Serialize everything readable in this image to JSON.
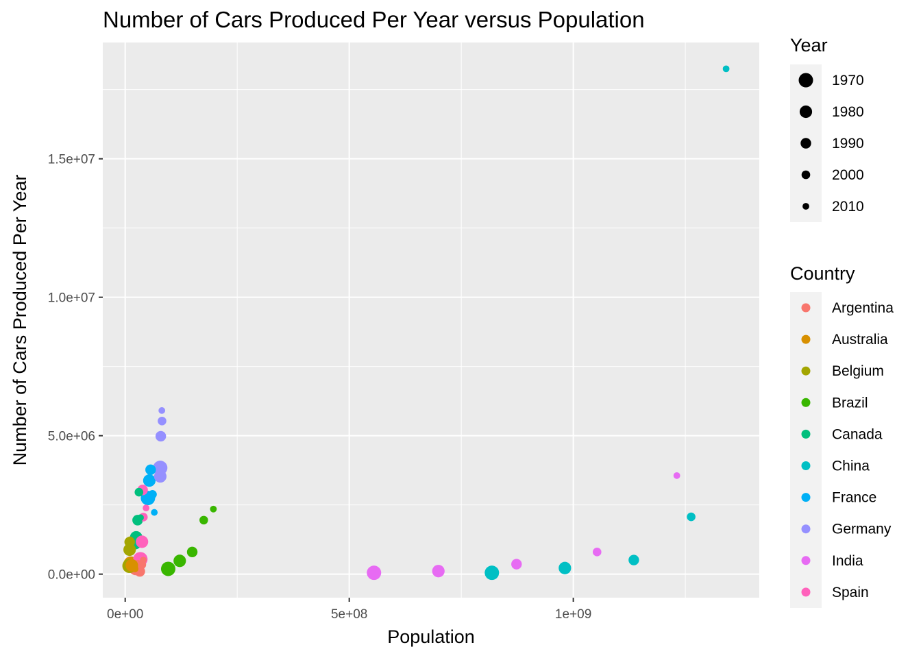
{
  "chart_data": {
    "type": "scatter",
    "title": "Number of Cars Produced Per Year versus Population",
    "xlabel": "Population",
    "ylabel": "Number of Cars Produced Per Year",
    "xlim": [
      -50000000,
      1415000000
    ],
    "ylim": [
      -850000,
      19200000
    ],
    "x_ticks": [
      {
        "value": 0,
        "label": "0e+00"
      },
      {
        "value": 500000000,
        "label": "5e+08"
      },
      {
        "value": 1000000000,
        "label": "1e+09"
      }
    ],
    "y_ticks": [
      {
        "value": 0,
        "label": "0.0e+00"
      },
      {
        "value": 5000000,
        "label": "5.0e+06"
      },
      {
        "value": 10000000,
        "label": "1.0e+07"
      },
      {
        "value": 15000000,
        "label": "1.5e+07"
      }
    ],
    "grid": true,
    "legend_position": "right",
    "size_legend": {
      "title": "Year",
      "entries": [
        {
          "label": "1970",
          "year": 1970
        },
        {
          "label": "1980",
          "year": 1980
        },
        {
          "label": "1990",
          "year": 1990
        },
        {
          "label": "2000",
          "year": 2000
        },
        {
          "label": "2010",
          "year": 2010
        }
      ]
    },
    "color_legend": {
      "title": "Country",
      "entries": [
        {
          "label": "Argentina",
          "color": "#F8766D"
        },
        {
          "label": "Australia",
          "color": "#D89000"
        },
        {
          "label": "Belgium",
          "color": "#A3A500"
        },
        {
          "label": "Brazil",
          "color": "#39B600"
        },
        {
          "label": "Canada",
          "color": "#00BF7D"
        },
        {
          "label": "China",
          "color": "#00BFC4"
        },
        {
          "label": "France",
          "color": "#00B0F6"
        },
        {
          "label": "Germany",
          "color": "#9590FF"
        },
        {
          "label": "India",
          "color": "#E76BF3"
        },
        {
          "label": "Spain",
          "color": "#FF62BC"
        }
      ]
    },
    "series": [
      {
        "name": "Argentina",
        "points": [
          {
            "x": 23960000,
            "y": 220000,
            "year": 1970
          },
          {
            "x": 28090000,
            "y": 282000,
            "year": 1980
          },
          {
            "x": 32620000,
            "y": 100000,
            "year": 1990
          },
          {
            "x": 37060000,
            "y": 340000,
            "year": 2000
          },
          {
            "x": 40370000,
            "y": 508000,
            "year": 2010
          }
        ]
      },
      {
        "name": "Australia",
        "points": [
          {
            "x": 12510000,
            "y": 380000,
            "year": 1970
          },
          {
            "x": 14690000,
            "y": 320000,
            "year": 1980
          },
          {
            "x": 17070000,
            "y": 280000,
            "year": 1990
          },
          {
            "x": 19150000,
            "y": 320000,
            "year": 2000
          },
          {
            "x": 22030000,
            "y": 190000,
            "year": 2010
          }
        ]
      },
      {
        "name": "Belgium",
        "points": [
          {
            "x": 9660000,
            "y": 300000,
            "year": 1970
          },
          {
            "x": 9860000,
            "y": 882000,
            "year": 1980
          },
          {
            "x": 9970000,
            "y": 1160000,
            "year": 1990
          },
          {
            "x": 10250000,
            "y": 912000,
            "year": 2000
          },
          {
            "x": 10900000,
            "y": 1240000,
            "year": 2010
          }
        ]
      },
      {
        "name": "Brazil",
        "points": [
          {
            "x": 95990000,
            "y": 190000,
            "year": 1970
          },
          {
            "x": 121700000,
            "y": 480000,
            "year": 1980
          },
          {
            "x": 149600000,
            "y": 800000,
            "year": 1990
          },
          {
            "x": 175300000,
            "y": 1950000,
            "year": 2000
          },
          {
            "x": 196800000,
            "y": 2350000,
            "year": 2010
          }
        ]
      },
      {
        "name": "Canada",
        "points": [
          {
            "x": 21300000,
            "y": 1150000,
            "year": 1970
          },
          {
            "x": 24520000,
            "y": 1330000,
            "year": 1980
          },
          {
            "x": 27690000,
            "y": 1950000,
            "year": 1990
          },
          {
            "x": 30690000,
            "y": 2960000,
            "year": 2000
          },
          {
            "x": 34130000,
            "y": 2040000,
            "year": 2010
          }
        ]
      },
      {
        "name": "China",
        "points": [
          {
            "x": 818300000,
            "y": 50000,
            "year": 1970
          },
          {
            "x": 981200000,
            "y": 220000,
            "year": 1980
          },
          {
            "x": 1135000000,
            "y": 510000,
            "year": 1990
          },
          {
            "x": 1263000000,
            "y": 2070000,
            "year": 2000
          },
          {
            "x": 1341000000,
            "y": 18250000,
            "year": 2010
          }
        ]
      },
      {
        "name": "France",
        "points": [
          {
            "x": 50770000,
            "y": 2750000,
            "year": 1970
          },
          {
            "x": 53880000,
            "y": 3380000,
            "year": 1980
          },
          {
            "x": 56710000,
            "y": 3770000,
            "year": 1990
          },
          {
            "x": 60910000,
            "y": 2880000,
            "year": 2000
          },
          {
            "x": 64970000,
            "y": 2230000,
            "year": 2010
          }
        ]
      },
      {
        "name": "Germany",
        "points": [
          {
            "x": 78170000,
            "y": 3840000,
            "year": 1970
          },
          {
            "x": 78290000,
            "y": 3530000,
            "year": 1980
          },
          {
            "x": 79430000,
            "y": 4980000,
            "year": 1990
          },
          {
            "x": 82210000,
            "y": 5530000,
            "year": 2000
          },
          {
            "x": 81780000,
            "y": 5910000,
            "year": 2010
          }
        ]
      },
      {
        "name": "India",
        "points": [
          {
            "x": 555200000,
            "y": 50000,
            "year": 1970
          },
          {
            "x": 698900000,
            "y": 110000,
            "year": 1980
          },
          {
            "x": 873300000,
            "y": 360000,
            "year": 1990
          },
          {
            "x": 1053000000,
            "y": 800000,
            "year": 2000
          },
          {
            "x": 1231000000,
            "y": 3560000,
            "year": 2010
          }
        ]
      },
      {
        "name": "Spain",
        "points": [
          {
            "x": 33880000,
            "y": 540000,
            "year": 1970
          },
          {
            "x": 37440000,
            "y": 1170000,
            "year": 1980
          },
          {
            "x": 38850000,
            "y": 3040000,
            "year": 1990
          },
          {
            "x": 40570000,
            "y": 2060000,
            "year": 2000
          },
          {
            "x": 46580000,
            "y": 2390000,
            "year": 2010
          }
        ]
      }
    ]
  }
}
